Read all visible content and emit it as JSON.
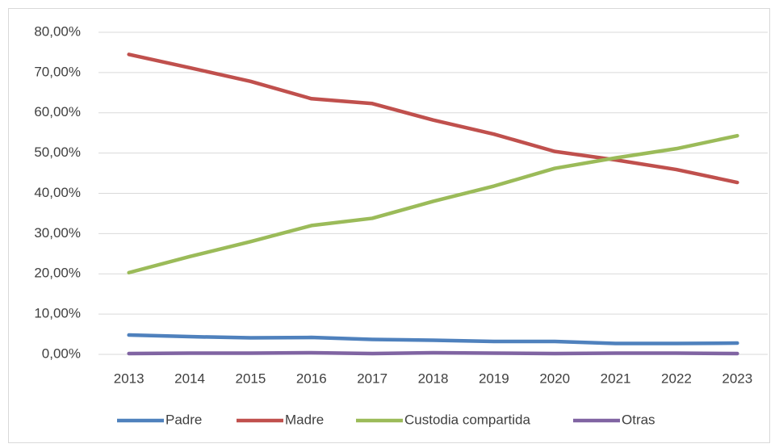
{
  "chart_data": {
    "type": "line",
    "categories": [
      "2013",
      "2014",
      "2015",
      "2016",
      "2017",
      "2018",
      "2019",
      "2020",
      "2021",
      "2022",
      "2023"
    ],
    "series": [
      {
        "name": "Padre",
        "color": "#4f81bd",
        "values": [
          4.8,
          4.4,
          4.1,
          4.2,
          3.7,
          3.5,
          3.2,
          3.2,
          2.7,
          2.7,
          2.8
        ]
      },
      {
        "name": "Madre",
        "color": "#c0504d",
        "values": [
          74.5,
          71.2,
          67.8,
          63.5,
          62.3,
          58.2,
          54.7,
          50.4,
          48.3,
          45.9,
          42.7
        ]
      },
      {
        "name": "Custodia compartida",
        "color": "#9bbb59",
        "values": [
          20.3,
          24.3,
          28.0,
          32.0,
          33.8,
          38.0,
          41.8,
          46.2,
          48.8,
          51.1,
          54.3
        ]
      },
      {
        "name": "Otras",
        "color": "#8064a2",
        "values": [
          0.2,
          0.3,
          0.3,
          0.4,
          0.2,
          0.4,
          0.3,
          0.2,
          0.3,
          0.3,
          0.2
        ]
      }
    ],
    "ylim": [
      0,
      80
    ],
    "yticks": [
      {
        "value": 0,
        "label": "0,00%"
      },
      {
        "value": 10,
        "label": "10,00%"
      },
      {
        "value": 20,
        "label": "20,00%"
      },
      {
        "value": 30,
        "label": "30,00%"
      },
      {
        "value": 40,
        "label": "40,00%"
      },
      {
        "value": 50,
        "label": "50,00%"
      },
      {
        "value": 60,
        "label": "60,00%"
      },
      {
        "value": 70,
        "label": "70,00%"
      },
      {
        "value": 80,
        "label": "80,00%"
      }
    ],
    "grid": true,
    "legend": "bottom"
  }
}
